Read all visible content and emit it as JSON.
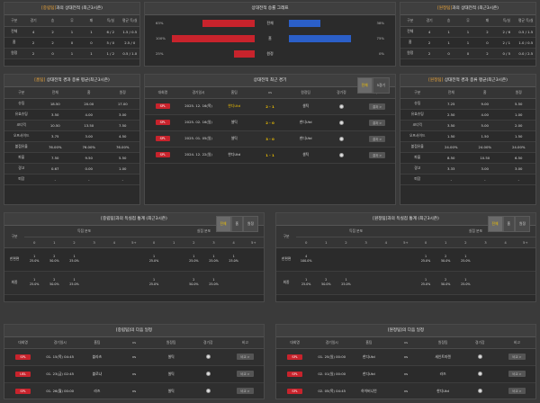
{
  "h2h_small_left": {
    "title_prefix": "[중립팀]",
    "title_suffix": "과의 상대전적 (최근3시즌)",
    "headers": [
      "구분",
      "경기",
      "승",
      "무",
      "패",
      "득/실",
      "평균 득/실"
    ],
    "rows": [
      [
        "전체",
        "4",
        "2",
        "1",
        "1",
        "6 / 2",
        "1.5 / 0.5"
      ],
      [
        "홈",
        "2",
        "2",
        "0",
        "0",
        "5 / 0",
        "2.5 / 0"
      ],
      [
        "원정",
        "2",
        "0",
        "1",
        "1",
        "1 / 2",
        "0.5 / 1.0"
      ]
    ]
  },
  "graph": {
    "title": "상대전적 승률 그래프",
    "rows": [
      {
        "lv": "63%",
        "mid": "전체",
        "rv": "38%",
        "l": 0.63,
        "r": 0.38
      },
      {
        "lv": "100%",
        "mid": "홈",
        "rv": "75%",
        "l": 1.0,
        "r": 0.75
      },
      {
        "lv": "25%",
        "mid": "원정",
        "rv": "0%",
        "l": 0.25,
        "r": 0.0
      }
    ]
  },
  "h2h_small_right": {
    "title_prefix": "[원정팀]",
    "title_suffix": "과의 상대전적 (최근3시즌)",
    "headers": [
      "구분",
      "경기",
      "승",
      "무",
      "패",
      "득/실",
      "평균 득/실"
    ],
    "rows": [
      [
        "전체",
        "4",
        "1",
        "1",
        "2",
        "2 / 6",
        "0.5 / 1.5"
      ],
      [
        "홈",
        "2",
        "1",
        "1",
        "0",
        "2 / 1",
        "1.0 / 0.5"
      ],
      [
        "원정",
        "2",
        "0",
        "0",
        "2",
        "0 / 5",
        "0.0 / 2.5"
      ]
    ]
  },
  "avg_left": {
    "title_prefix": "[홈팀]",
    "title_suffix": " 상대전적 경과 종류 평균(최근3시즌)",
    "headers": [
      "구분",
      "전체",
      "홈",
      "원정"
    ],
    "rows": [
      [
        "슈팅",
        "18.50",
        "20.00",
        "17.00"
      ],
      [
        "유효슈팅",
        "3.50",
        "4.00",
        "3.00"
      ],
      [
        "코너킥",
        "10.50",
        "13.50",
        "7.50"
      ],
      [
        "오프사이드",
        "3.75",
        "3.00",
        "4.50"
      ],
      [
        "볼점유율",
        "76.00%",
        "76.00%",
        "76.00%"
      ],
      [
        "파울",
        "7.50",
        "9.50",
        "5.50"
      ],
      [
        "경고",
        "0.67",
        "0.00",
        "1.00"
      ],
      [
        "퇴장",
        "-",
        "-",
        "-"
      ]
    ]
  },
  "recent": {
    "title": "상대전적 최근 경기",
    "toggle": [
      "전체",
      "5경기"
    ],
    "headers": [
      "대회명",
      "경기일시",
      "홈팀",
      "vs",
      "원정팀",
      "경기정",
      "비고"
    ],
    "rows": [
      {
        "league": "SPL",
        "date": "2025. 12. 16(목)",
        "home": "한디Utd",
        "score": "2 - 1",
        "away": "셀틱",
        "btn": "결과 >",
        "home_hl": true
      },
      {
        "league": "SPL",
        "date": "2025. 02. 16(일)",
        "home": "셀틱",
        "score": "2 - 0",
        "away": "한디Utd",
        "btn": "결과 >",
        "home_hl": false
      },
      {
        "league": "SPL",
        "date": "2025. 01. 05(일)",
        "home": "셀틱",
        "score": "3 - 0",
        "away": "한디Utd",
        "btn": "결과 >",
        "home_hl": false
      },
      {
        "league": "SPL",
        "date": "2024. 12. 22(일)",
        "home": "한디Utd",
        "score": "1 - 1",
        "away": "셀틱",
        "btn": "결과 >",
        "home_hl": false
      }
    ]
  },
  "avg_right": {
    "title_prefix": "[원정팀]",
    "title_suffix": " 상대전적 경과 종류 평균(최근3시즌)",
    "headers": [
      "구분",
      "전체",
      "홈",
      "원정"
    ],
    "rows": [
      [
        "슈팅",
        "7.25",
        "9.00",
        "5.50"
      ],
      [
        "유효슈팅",
        "2.50",
        "4.00",
        "1.00"
      ],
      [
        "코너킥",
        "3.50",
        "5.00",
        "2.00"
      ],
      [
        "오프사이드",
        "1.50",
        "1.50",
        "1.50"
      ],
      [
        "볼점유율",
        "24.00%",
        "24.00%",
        "24.00%"
      ],
      [
        "파울",
        "8.50",
        "10.50",
        "6.50"
      ],
      [
        "경고",
        "3.33",
        "3.00",
        "3.00"
      ],
      [
        "퇴장",
        "-",
        "-",
        "-"
      ]
    ]
  },
  "goal_left": {
    "title": "[중립팀]과의 득실점 통계 (최근3시즌)",
    "tabs": [
      "전체",
      "홈",
      "원정"
    ],
    "group_headers": [
      "득점 분포",
      "실점 분포"
    ],
    "sub": [
      "0",
      "1",
      "2",
      "3",
      "4",
      "5+",
      "0",
      "1",
      "2",
      "3",
      "4",
      "5+"
    ],
    "col0": "구분",
    "rows": [
      {
        "label": "한편편",
        "cells": [
          "1\n25.0%",
          "2\n50.0%",
          "1\n25.0%",
          "",
          "",
          "",
          "1\n25.0%",
          "",
          "1\n25.0%",
          "1\n25.0%",
          "1\n25.0%",
          ""
        ]
      },
      {
        "label": "최종",
        "cells": [
          "1\n25.0%",
          "2\n50.0%",
          "1\n25.0%",
          "",
          "",
          "",
          "1\n25.0%",
          "",
          "2\n50.0%",
          "1\n25.0%",
          "",
          ""
        ]
      }
    ]
  },
  "goal_right": {
    "title": "[원정팀]과의 득실점 통계 (최근3시즌)",
    "tabs": [
      "전체",
      "홈",
      "원정"
    ],
    "group_headers": [
      "득점 분포",
      "실점 분포"
    ],
    "sub": [
      "0",
      "1",
      "2",
      "3",
      "4",
      "5+",
      "0",
      "1",
      "2",
      "3",
      "4",
      "5+"
    ],
    "col0": "구분",
    "rows": [
      {
        "label": "한편편",
        "cells": [
          "4\n100.0%",
          "",
          "",
          "",
          "",
          "",
          "1\n25.0%",
          "2\n50.0%",
          "1\n25.0%",
          "",
          "",
          ""
        ]
      },
      {
        "label": "최종",
        "cells": [
          "1\n25.0%",
          "2\n50.0%",
          "1\n25.0%",
          "",
          "",
          "",
          "1\n25.0%",
          "2\n50.0%",
          "1\n25.0%",
          "",
          "",
          ""
        ]
      }
    ]
  },
  "next_left": {
    "title": "[중립팀]의 다음 일정",
    "headers": [
      "대회명",
      "경기일시",
      "홈팀",
      "vs",
      "원정팀",
      "경기장",
      "비고"
    ],
    "rows": [
      {
        "league": "SPL",
        "date": "01. 15(목) 04:45",
        "home": "블라츠",
        "away": "셀틱",
        "btn": "비교 >"
      },
      {
        "league": "UEL",
        "date": "01. 23(금) 02:45",
        "home": "볼로냐",
        "away": "셀틱",
        "btn": "비교 >"
      },
      {
        "league": "SPL",
        "date": "01. 26(월) 00:00",
        "home": "라즈",
        "away": "셀틱",
        "btn": "비교 >"
      }
    ]
  },
  "next_right": {
    "title": "[원정팀]의 다음 일정",
    "headers": [
      "대회명",
      "경기일시",
      "홈팀",
      "vs",
      "원정팀",
      "경기장",
      "비고"
    ],
    "rows": [
      {
        "league": "SPL",
        "date": "01. 25(일) 00:00",
        "home": "한디Utd",
        "away": "세인트미렌",
        "btn": "비교 >"
      },
      {
        "league": "SPL",
        "date": "02. 01(일) 00:00",
        "home": "한디Utd",
        "away": "라즈",
        "btn": "비교 >"
      },
      {
        "league": "SPL",
        "date": "02. 05(목) 04:45",
        "home": "하이버니언",
        "away": "한디Utd",
        "btn": "비교 >"
      }
    ]
  },
  "vs_text": "vs"
}
